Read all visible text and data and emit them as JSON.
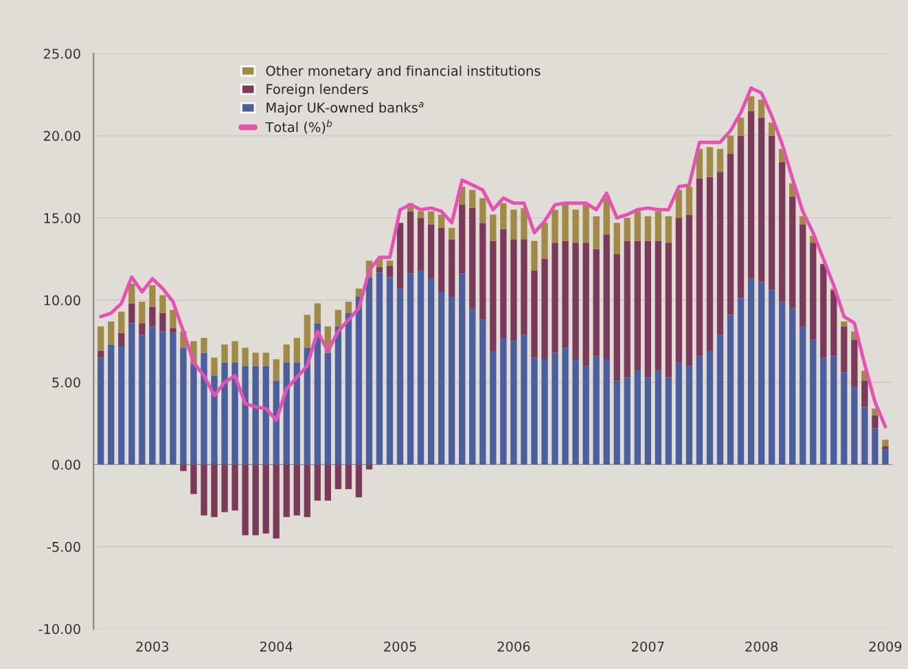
{
  "chart_data": {
    "type": "bar",
    "stacked": true,
    "categories": [
      null,
      null,
      null,
      null,
      null,
      "2003",
      null,
      null,
      null,
      null,
      null,
      null,
      null,
      null,
      null,
      null,
      null,
      "2004",
      null,
      null,
      null,
      null,
      null,
      null,
      null,
      null,
      null,
      null,
      null,
      "2005",
      null,
      null,
      null,
      null,
      null,
      null,
      null,
      null,
      null,
      null,
      "2006",
      null,
      null,
      null,
      null,
      null,
      null,
      null,
      null,
      null,
      null,
      null,
      null,
      "2007",
      null,
      null,
      null,
      null,
      null,
      null,
      null,
      null,
      null,
      null,
      "2008",
      null,
      null,
      null,
      null,
      null,
      null,
      null,
      null,
      null,
      null,
      null,
      "2009"
    ],
    "series": [
      {
        "name": "Major UK-owned banks$^{a}$",
        "color": "#4b5f9e",
        "values": [
          6.5,
          7.3,
          7.2,
          8.6,
          7.9,
          8.4,
          8.1,
          8.0,
          7.1,
          6.1,
          6.8,
          5.4,
          6.2,
          6.2,
          6.0,
          6.0,
          6.0,
          5.1,
          6.2,
          6.2,
          7.1,
          8.6,
          6.8,
          8.4,
          9.2,
          10.2,
          11.4,
          11.7,
          11.4,
          10.7,
          11.6,
          11.8,
          11.3,
          10.5,
          10.2,
          11.6,
          9.5,
          8.8,
          6.9,
          7.7,
          7.5,
          7.9,
          6.5,
          6.4,
          6.8,
          7.1,
          6.4,
          6.0,
          6.6,
          6.4,
          5.1,
          5.3,
          5.7,
          5.3,
          5.7,
          5.3,
          6.2,
          6.0,
          6.6,
          6.9,
          7.9,
          9.1,
          10.1,
          11.3,
          11.1,
          10.6,
          9.9,
          9.5,
          8.4,
          7.6,
          6.5,
          6.6,
          5.6,
          4.7,
          3.5,
          2.2,
          0.9
        ]
      },
      {
        "name": "Foreign lenders",
        "color": "#7b3a5a",
        "values": [
          0.4,
          0.0,
          0.8,
          1.2,
          0.7,
          1.2,
          1.1,
          0.3,
          -0.4,
          -1.8,
          -3.1,
          -3.2,
          -2.9,
          -2.8,
          -4.3,
          -4.3,
          -4.2,
          -4.5,
          -3.2,
          -3.1,
          -3.2,
          -2.2,
          -2.2,
          -1.5,
          -1.5,
          -2.0,
          -0.3,
          0.3,
          0.7,
          4.0,
          3.8,
          3.2,
          3.3,
          3.9,
          3.5,
          4.2,
          6.1,
          5.9,
          6.7,
          6.6,
          6.2,
          5.8,
          5.3,
          6.1,
          6.7,
          6.5,
          7.1,
          7.5,
          6.5,
          7.6,
          7.7,
          8.3,
          7.9,
          8.3,
          7.9,
          8.2,
          8.8,
          9.2,
          10.8,
          10.6,
          9.9,
          9.8,
          9.9,
          10.2,
          10.0,
          9.4,
          8.5,
          6.8,
          6.2,
          5.9,
          5.7,
          4.0,
          2.8,
          2.9,
          1.6,
          0.8,
          0.2
        ]
      },
      {
        "name": "Other monetary and financial institutions",
        "color": "#a08a45",
        "values": [
          1.5,
          1.4,
          1.3,
          1.2,
          1.3,
          1.3,
          1.1,
          1.1,
          1.0,
          1.4,
          0.9,
          1.1,
          1.1,
          1.3,
          1.1,
          0.8,
          0.8,
          1.3,
          1.1,
          1.5,
          2.0,
          1.2,
          1.6,
          1.0,
          0.7,
          0.5,
          1.0,
          0.5,
          0.3,
          null,
          0.5,
          0.4,
          0.8,
          0.8,
          0.7,
          1.1,
          1.1,
          1.5,
          1.6,
          1.6,
          1.8,
          1.9,
          1.8,
          2.2,
          2.0,
          2.2,
          2.0,
          2.3,
          2.0,
          2.2,
          1.9,
          1.4,
          1.8,
          1.5,
          1.8,
          1.6,
          1.7,
          1.7,
          1.8,
          1.8,
          1.4,
          1.1,
          1.1,
          0.9,
          1.1,
          0.8,
          0.8,
          0.8,
          0.5,
          0.4,
          null,
          0.1,
          0.3,
          0.5,
          0.6,
          0.4,
          0.4
        ]
      },
      {
        "name": "Total (%)$^{b}$",
        "type": "line",
        "color": "#e552b4",
        "values": [
          9.0,
          9.2,
          9.8,
          11.4,
          10.5,
          11.3,
          10.7,
          9.9,
          8.1,
          6.2,
          5.4,
          4.2,
          5.0,
          5.4,
          3.7,
          3.5,
          3.4,
          2.7,
          4.6,
          5.3,
          6.0,
          8.1,
          6.9,
          8.1,
          8.8,
          9.5,
          11.8,
          12.6,
          12.6,
          15.5,
          15.8,
          15.5,
          15.6,
          15.4,
          14.7,
          17.3,
          17.0,
          16.7,
          15.5,
          16.2,
          15.9,
          15.9,
          14.1,
          14.8,
          15.8,
          15.9,
          15.9,
          15.9,
          15.5,
          16.5,
          15.0,
          15.2,
          15.5,
          15.6,
          15.5,
          15.5,
          16.9,
          17.0,
          19.6,
          19.6,
          19.6,
          20.3,
          21.4,
          22.9,
          22.6,
          21.2,
          19.5,
          17.4,
          15.4,
          14.1,
          12.5,
          10.9,
          9.0,
          8.6,
          6.1,
          3.8,
          2.3
        ]
      }
    ],
    "ylim": [
      -10,
      25
    ],
    "yticks": [
      {
        "value": -10,
        "label": "-10.00"
      },
      {
        "value": -5,
        "label": "-5.00"
      },
      {
        "value": 0,
        "label": "0.00"
      },
      {
        "value": 5,
        "label": "5.00"
      },
      {
        "value": 10,
        "label": "10.00"
      },
      {
        "value": 15,
        "label": "15.00"
      },
      {
        "value": 20,
        "label": "20.00"
      },
      {
        "value": 25,
        "label": "25.00"
      }
    ],
    "grid": "y",
    "legend": "top left"
  }
}
